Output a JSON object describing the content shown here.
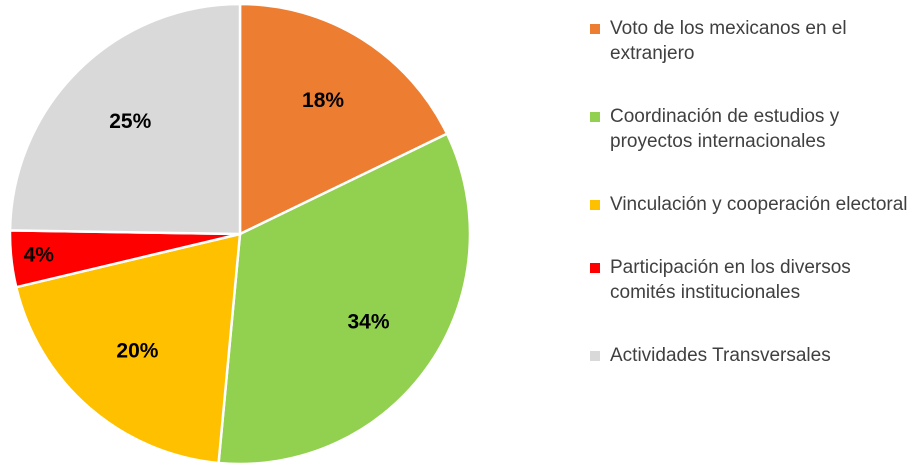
{
  "chart_data": {
    "type": "pie",
    "categories": [
      "Voto de los mexicanos en el extranjero",
      "Coordinación de estudios y proyectos internacionales",
      "Vinculación y cooperación electoral",
      "Participación en los diversos comités institucionales",
      "Actividades Transversales"
    ],
    "values": [
      18,
      34,
      20,
      4,
      25
    ],
    "value_labels": [
      "18%",
      "34%",
      "20%",
      "4%",
      "25%"
    ],
    "colors": [
      "#ED7D31",
      "#92D050",
      "#FFC000",
      "#FF0000",
      "#D9D9D9"
    ],
    "legend": "right"
  }
}
